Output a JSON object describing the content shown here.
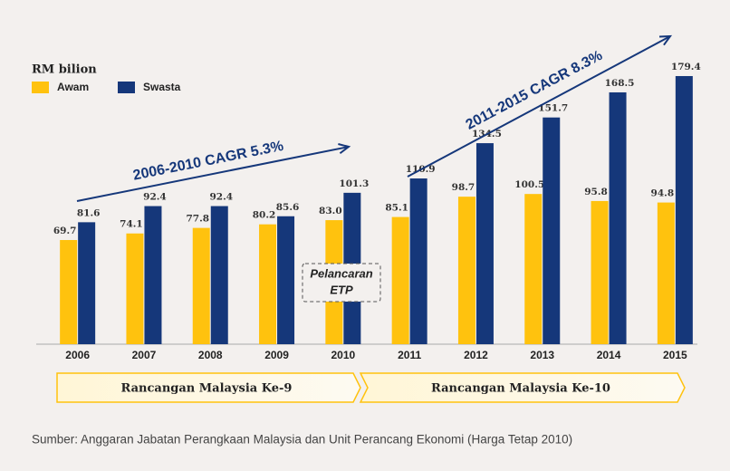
{
  "chart_data": {
    "type": "bar",
    "y_label": "RM bilion",
    "categories": [
      "2006",
      "2007",
      "2008",
      "2009",
      "2010",
      "2011",
      "2012",
      "2013",
      "2014",
      "2015"
    ],
    "series": [
      {
        "name": "Awam",
        "color": "#ffc20e",
        "values": [
          69.7,
          74.1,
          77.8,
          80.2,
          83.0,
          85.1,
          98.7,
          100.5,
          95.8,
          94.8
        ],
        "value_labels": [
          "69.7",
          "74.1",
          "77.8",
          "80.2",
          "83.0",
          "85.1",
          "98.7",
          "100.5",
          "95.8",
          "94.8"
        ]
      },
      {
        "name": "Swasta",
        "color": "#15377a",
        "values": [
          81.6,
          92.4,
          92.4,
          85.6,
          101.3,
          110.9,
          134.5,
          151.7,
          168.5,
          179.4
        ],
        "value_labels": [
          "81.6",
          "92.4",
          "92.4",
          "85.6",
          "101.3",
          "110.9",
          "134.5",
          "151.7",
          "168.5",
          "179.4"
        ]
      }
    ],
    "ylim": [
      0,
      180
    ],
    "annotations": [
      "2006-2010 CAGR 5.3%",
      "2011-2015 CAGR 8.3%",
      "Pelancaran",
      "ETP"
    ],
    "periods": [
      "Rancangan Malaysia Ke-9",
      "Rancangan Malaysia Ke-10"
    ],
    "source": "Sumber: Anggaran Jabatan Perangkaan Malaysia dan Unit Perancang Ekonomi (Harga Tetap 2010)"
  }
}
